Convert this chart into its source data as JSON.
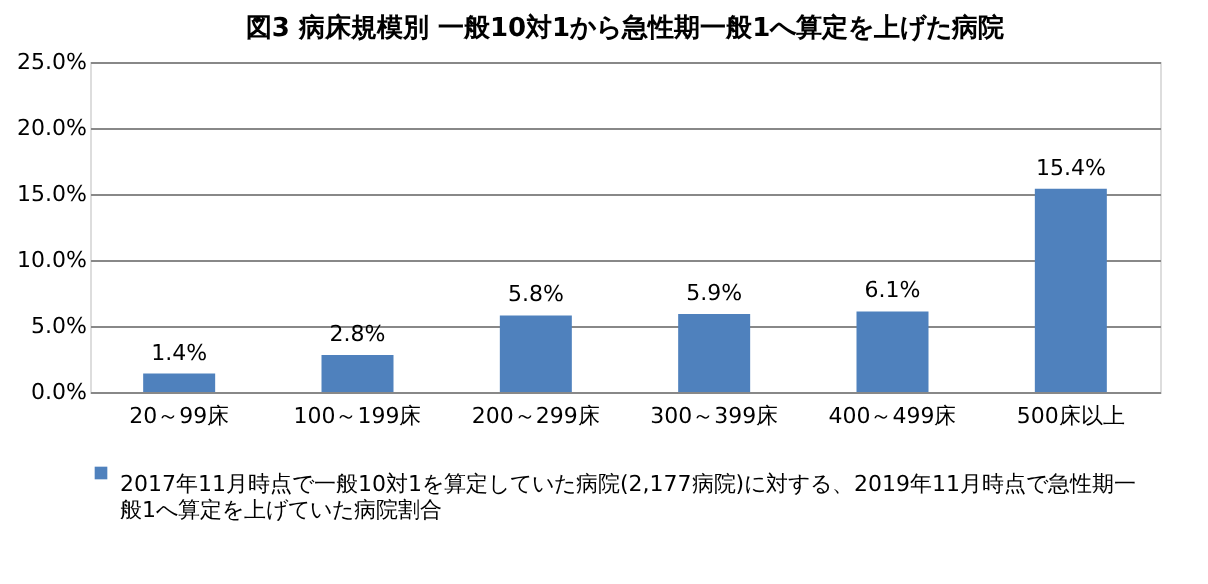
{
  "chart_data": {
    "type": "bar",
    "title": "図3 病床規模別 一般10対1から急性期一般1へ算定を上げた病院",
    "categories": [
      "20～99床",
      "100～199床",
      "200～299床",
      "300～399床",
      "400～499床",
      "500床以上"
    ],
    "series": [
      {
        "name": "2017年11月時点で一般10対1を算定していた病院(2,177病院)に対する、2019年11月時点で急性期一般1へ算定を上げていた病院割合",
        "color": "#4f81bd",
        "values": [
          1.4,
          2.8,
          5.8,
          5.9,
          6.1,
          15.4
        ],
        "value_labels": [
          "1.4%",
          "2.8%",
          "5.8%",
          "5.9%",
          "6.1%",
          "15.4%"
        ]
      }
    ],
    "ylim": [
      0,
      25
    ],
    "yticks": [
      {
        "value": 0,
        "label": "0.0%"
      },
      {
        "value": 5,
        "label": "5.0%"
      },
      {
        "value": 10,
        "label": "10.0%"
      },
      {
        "value": 15,
        "label": "15.0%"
      },
      {
        "value": 20,
        "label": "20.0%"
      },
      {
        "value": 25,
        "label": "25.0%"
      }
    ],
    "grid": "y",
    "legend": "bottom"
  }
}
